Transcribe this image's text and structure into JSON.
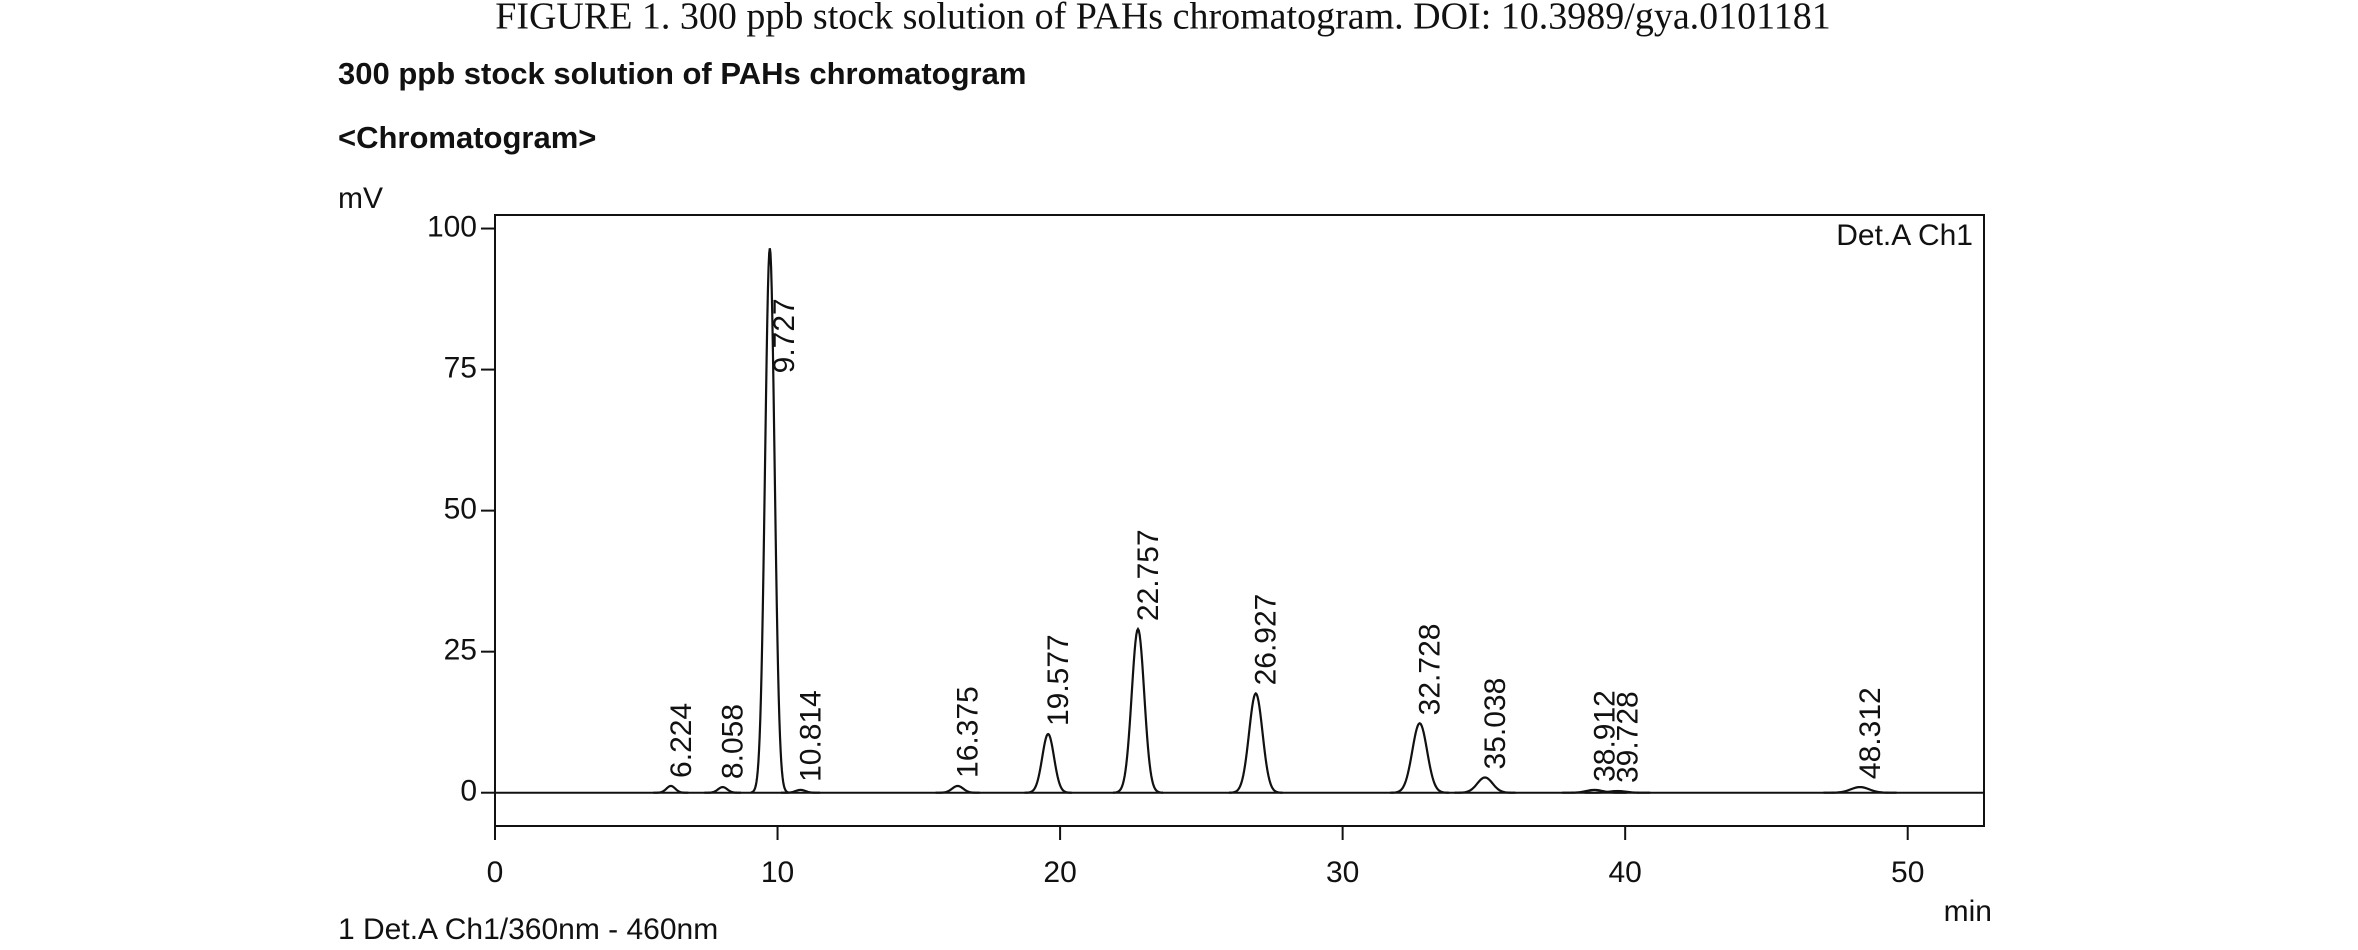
{
  "caption": "FIGURE 1.    300 ppb stock solution of PAHs chromatogram. DOI: 10.3989/gya.0101181",
  "chart_data": {
    "type": "chromatogram",
    "title": "300 ppb stock solution of PAHs chromatogram",
    "subtitle": "<Chromatogram>",
    "y_label": "mV",
    "x_label": "min",
    "channel_label": "Det.A Ch1",
    "footer": "1  Det.A Ch1/360nm - 460nm",
    "x": [
      6.224,
      8.058,
      9.727,
      10.814,
      16.375,
      19.577,
      22.757,
      26.927,
      32.728,
      35.038,
      38.912,
      39.728,
      48.312
    ],
    "values": [
      1.2,
      1.0,
      96.5,
      0.5,
      1.2,
      10.4,
      29,
      17.6,
      12.3,
      2.7,
      0.5,
      0.3,
      1.0
    ],
    "color": "#111111",
    "xlim": [
      0,
      52.7
    ],
    "ylim": [
      -5.9,
      102.4
    ],
    "xticks": [
      0,
      10,
      20,
      30,
      40,
      50
    ],
    "yticks": [
      0,
      25,
      50,
      75,
      100
    ]
  }
}
